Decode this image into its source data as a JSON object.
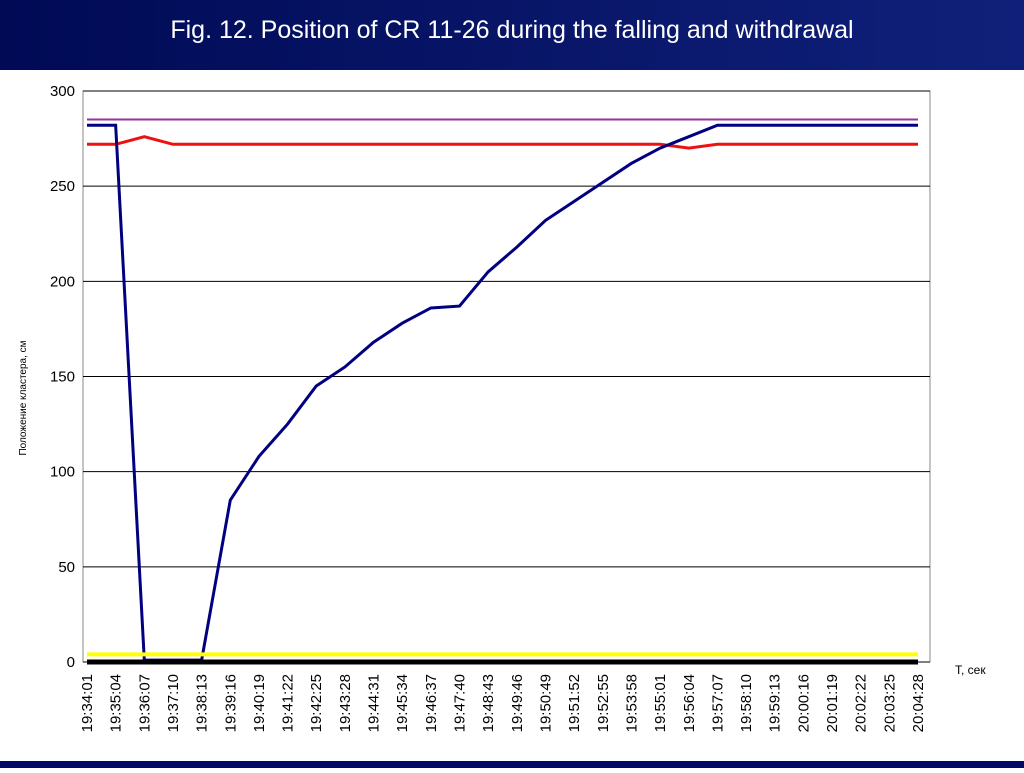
{
  "chart_data": {
    "type": "line",
    "title": "Fig. 12. Position of CR 11-26 during the falling and withdrawal",
    "x_label": "Т, сек",
    "y_label": "Положение кластера, см",
    "categories": [
      "19:34:01",
      "19:35:04",
      "19:36:07",
      "19:37:10",
      "19:38:13",
      "19:39:16",
      "19:40:19",
      "19:41:22",
      "19:42:25",
      "19:43:28",
      "19:44:31",
      "19:45:34",
      "19:46:37",
      "19:47:40",
      "19:48:43",
      "19:49:46",
      "19:50:49",
      "19:51:52",
      "19:52:55",
      "19:53:58",
      "19:55:01",
      "19:56:04",
      "19:57:07",
      "19:58:10",
      "19:59:13",
      "20:00:16",
      "20:01:19",
      "20:02:22",
      "20:03:25",
      "20:04:28"
    ],
    "series": [
      {
        "color": "#00ccee",
        "width": 2,
        "values": [
          285,
          285,
          285,
          285,
          285,
          285,
          285,
          285,
          285,
          285,
          285,
          285,
          285,
          285,
          285,
          285,
          285,
          285,
          285,
          285,
          285,
          285,
          285,
          285,
          285,
          285,
          285,
          285,
          285,
          285
        ]
      },
      {
        "color": "#993399",
        "width": 2,
        "values": [
          285,
          285,
          285,
          285,
          285,
          285,
          285,
          285,
          285,
          285,
          285,
          285,
          285,
          285,
          285,
          285,
          285,
          285,
          285,
          285,
          285,
          285,
          285,
          285,
          285,
          285,
          285,
          285,
          285,
          285
        ]
      },
      {
        "color": "#ee1111",
        "width": 3,
        "values": [
          272,
          272,
          276,
          272,
          272,
          272,
          272,
          272,
          272,
          272,
          272,
          272,
          272,
          272,
          272,
          272,
          272,
          272,
          272,
          272,
          272,
          270,
          272,
          272,
          272,
          272,
          272,
          272,
          272,
          272
        ]
      },
      {
        "color": "#000080",
        "width": 3,
        "values": [
          282,
          282,
          1,
          1,
          1,
          85,
          108,
          125,
          145,
          155,
          168,
          178,
          186,
          187,
          205,
          218,
          232,
          242,
          252,
          262,
          270,
          276,
          282,
          282,
          282,
          282,
          282,
          282,
          282,
          282
        ]
      },
      {
        "color": "#ffff00",
        "width": 4,
        "values": [
          4,
          4,
          4,
          4,
          4,
          4,
          4,
          4,
          4,
          4,
          4,
          4,
          4,
          4,
          4,
          4,
          4,
          4,
          4,
          4,
          4,
          4,
          4,
          4,
          4,
          4,
          4,
          4,
          4,
          4
        ]
      },
      {
        "color": "#000000",
        "width": 5,
        "values": [
          0,
          0,
          0,
          0,
          0,
          0,
          0,
          0,
          0,
          0,
          0,
          0,
          0,
          0,
          0,
          0,
          0,
          0,
          0,
          0,
          0,
          0,
          0,
          0,
          0,
          0,
          0,
          0,
          0,
          0
        ]
      }
    ],
    "ylim": [
      0,
      300
    ],
    "yticks": [
      0,
      50,
      100,
      150,
      200,
      250,
      300
    ],
    "grid": true
  }
}
